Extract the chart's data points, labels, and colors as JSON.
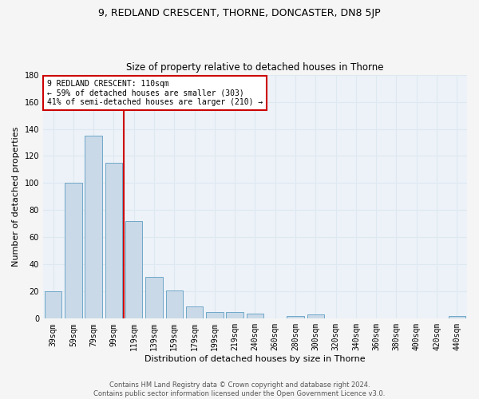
{
  "title": "9, REDLAND CRESCENT, THORNE, DONCASTER, DN8 5JP",
  "subtitle": "Size of property relative to detached houses in Thorne",
  "xlabel": "Distribution of detached houses by size in Thorne",
  "ylabel": "Number of detached properties",
  "categories": [
    "39sqm",
    "59sqm",
    "79sqm",
    "99sqm",
    "119sqm",
    "139sqm",
    "159sqm",
    "179sqm",
    "199sqm",
    "219sqm",
    "240sqm",
    "260sqm",
    "280sqm",
    "300sqm",
    "320sqm",
    "340sqm",
    "360sqm",
    "380sqm",
    "400sqm",
    "420sqm",
    "440sqm"
  ],
  "values": [
    20,
    100,
    135,
    115,
    72,
    31,
    21,
    9,
    5,
    5,
    4,
    0,
    2,
    3,
    0,
    0,
    0,
    0,
    0,
    0,
    2
  ],
  "bar_color": "#c9d9e8",
  "bar_edge_color": "#6fa8c8",
  "vline_color": "#cc0000",
  "vline_x_index": 3.5,
  "annotation_text": "9 REDLAND CRESCENT: 110sqm\n← 59% of detached houses are smaller (303)\n41% of semi-detached houses are larger (210) →",
  "annotation_box_color": "#ffffff",
  "annotation_box_edge_color": "#cc0000",
  "grid_color": "#dde8f0",
  "plot_bg_color": "#edf2f8",
  "fig_bg_color": "#f5f5f5",
  "footer_text": "Contains HM Land Registry data © Crown copyright and database right 2024.\nContains public sector information licensed under the Open Government Licence v3.0.",
  "ylim": [
    0,
    180
  ],
  "yticks": [
    0,
    20,
    40,
    60,
    80,
    100,
    120,
    140,
    160,
    180
  ],
  "title_fontsize": 9,
  "subtitle_fontsize": 8.5,
  "xlabel_fontsize": 8,
  "ylabel_fontsize": 8,
  "tick_fontsize": 7,
  "footer_fontsize": 6,
  "annot_fontsize": 7
}
